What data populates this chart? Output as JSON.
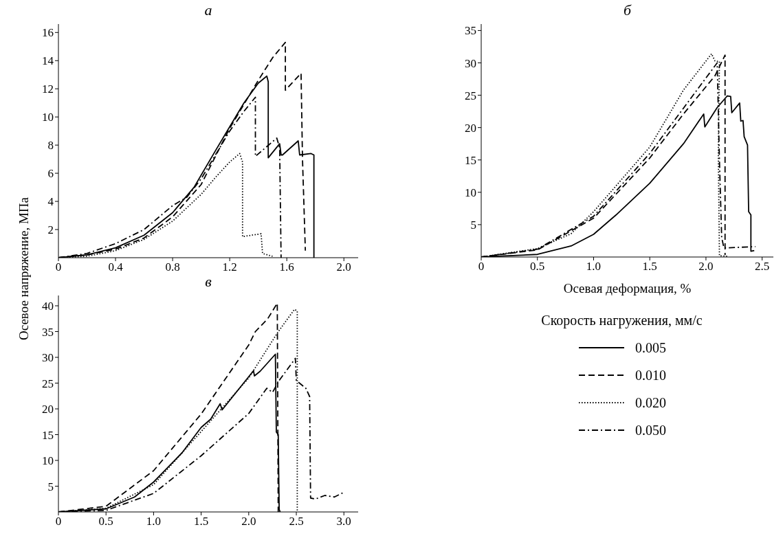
{
  "chart_data": [
    {
      "type": "line",
      "title": "а",
      "ylabel": "Осевое напряжение, МПа",
      "xlim": [
        0,
        2.1
      ],
      "xticks": [
        0,
        0.4,
        0.8,
        1.2,
        1.6,
        {
          "value": 2,
          "label": "2.0"
        }
      ],
      "ylim": [
        0,
        16.6
      ],
      "yticks": [
        2,
        4,
        6,
        8,
        10,
        12,
        14,
        16
      ],
      "legend": false,
      "marker": "none",
      "series": [
        {
          "color": "#000000",
          "line_style": "solid",
          "x": [
            0,
            0.2,
            0.4,
            0.6,
            0.8,
            0.95,
            1.1,
            1.2,
            1.3,
            1.4,
            1.46,
            1.47,
            1.47,
            1.55,
            1.56,
            1.57,
            1.68,
            1.69,
            1.77,
            1.79,
            1.79,
            1.79
          ],
          "values": [
            0,
            0.2,
            0.7,
            1.6,
            3.2,
            5.0,
            7.6,
            9.3,
            11.0,
            12.4,
            12.9,
            12.5,
            7.1,
            8.1,
            7.3,
            7.3,
            8.3,
            7.3,
            7.4,
            7.3,
            6.0,
            0
          ]
        },
        {
          "color": "#000000",
          "line_style": "dashed",
          "x": [
            0,
            0.2,
            0.4,
            0.6,
            0.8,
            1.0,
            1.2,
            1.3,
            1.4,
            1.5,
            1.59,
            1.59,
            1.7,
            1.71,
            1.73
          ],
          "values": [
            0,
            0.2,
            0.6,
            1.4,
            2.9,
            5.2,
            9.2,
            10.9,
            12.6,
            14.2,
            15.3,
            11.9,
            13.1,
            7.0,
            0.5
          ]
        },
        {
          "color": "#000000",
          "line_style": "dotted",
          "x": [
            0,
            0.2,
            0.4,
            0.6,
            0.8,
            1.0,
            1.1,
            1.2,
            1.27,
            1.29,
            1.29,
            1.42,
            1.43,
            1.5
          ],
          "values": [
            0,
            0.1,
            0.5,
            1.3,
            2.6,
            4.5,
            5.7,
            6.8,
            7.4,
            6.8,
            1.5,
            1.7,
            0.3,
            0.1
          ]
        },
        {
          "color": "#000000",
          "line_style": "dashdot",
          "x": [
            0,
            0.2,
            0.4,
            0.6,
            0.8,
            0.9,
            1.0,
            1.2,
            1.3,
            1.38,
            1.38,
            1.53,
            1.55,
            1.56
          ],
          "values": [
            0,
            0.3,
            1.0,
            2.0,
            3.7,
            4.3,
            5.6,
            9.0,
            10.4,
            11.4,
            7.2,
            8.5,
            7.8,
            0
          ]
        }
      ]
    },
    {
      "type": "line",
      "title": "б",
      "xlabel": "Осевая деформация, %",
      "legend_title": "Скорость нагружения, мм/с",
      "legend": "bottom",
      "xlim": [
        0,
        2.6
      ],
      "xticks": [
        0,
        0.5,
        {
          "value": 1,
          "label": "1.0"
        },
        1.5,
        {
          "value": 2,
          "label": "2.0"
        },
        2.5
      ],
      "ylim": [
        0,
        36
      ],
      "yticks": [
        5,
        10,
        15,
        20,
        25,
        30,
        35
      ],
      "marker": "none",
      "series": [
        {
          "name": "0.005",
          "color": "#000000",
          "line_style": "solid",
          "x": [
            0,
            0.5,
            0.8,
            1.0,
            1.2,
            1.5,
            1.8,
            1.98,
            1.99,
            2.1,
            2.19,
            2.22,
            2.23,
            2.3,
            2.31,
            2.33,
            2.34,
            2.37,
            2.38,
            2.4,
            2.4,
            2.43
          ],
          "values": [
            0,
            0.4,
            1.7,
            3.5,
            6.5,
            11.4,
            17.5,
            22.1,
            20.1,
            23.1,
            24.9,
            24.8,
            22.3,
            23.8,
            21.0,
            21.1,
            18.6,
            17.3,
            7.0,
            6.5,
            0.9,
            1.0
          ]
        },
        {
          "name": "0.010",
          "color": "#000000",
          "line_style": "dashed",
          "x": [
            0,
            0.5,
            1.0,
            1.5,
            1.8,
            2.08,
            2.17,
            2.17
          ],
          "values": [
            0,
            1.1,
            6.0,
            15.3,
            22.1,
            28.0,
            31.2,
            0.3
          ]
        },
        {
          "name": "0.020",
          "color": "#000000",
          "line_style": "dotted",
          "x": [
            0,
            0.5,
            0.8,
            1.0,
            1.5,
            1.8,
            2.05,
            2.08,
            2.12,
            2.11,
            2.12,
            2.2
          ],
          "values": [
            0,
            1.3,
            3.6,
            7.0,
            17.0,
            25.8,
            31.4,
            30.3,
            30.2,
            16.0,
            0.2,
            0.1
          ]
        },
        {
          "name": "0.050",
          "color": "#000000",
          "line_style": "dashdot",
          "x": [
            0,
            0.5,
            1.0,
            1.5,
            1.8,
            2.1,
            2.12,
            2.14,
            2.16,
            2.44
          ],
          "values": [
            0,
            1.2,
            6.3,
            16.0,
            23.0,
            30.0,
            15.0,
            3.0,
            1.4,
            1.6
          ]
        }
      ]
    },
    {
      "type": "line",
      "title": "в",
      "xlim": [
        0,
        3.15
      ],
      "xticks": [
        0,
        0.5,
        {
          "value": 1,
          "label": "1.0"
        },
        1.5,
        {
          "value": 2,
          "label": "2.0"
        },
        2.5,
        {
          "value": 3,
          "label": "3.0"
        }
      ],
      "ylim": [
        0,
        42
      ],
      "yticks": [
        5,
        10,
        15,
        20,
        25,
        30,
        35,
        40
      ],
      "legend": false,
      "marker": "none",
      "series": [
        {
          "color": "#000000",
          "line_style": "solid",
          "x": [
            0,
            0.5,
            0.8,
            1.0,
            1.3,
            1.5,
            1.6,
            1.7,
            1.72,
            2.05,
            2.06,
            2.12,
            2.28,
            2.29,
            2.31,
            2.32,
            2.33
          ],
          "values": [
            0,
            0.6,
            2.9,
            5.8,
            11.5,
            16.4,
            18.0,
            21.0,
            19.8,
            27.4,
            26.4,
            27.3,
            30.6,
            15.5,
            15.0,
            0.5,
            0
          ]
        },
        {
          "color": "#000000",
          "line_style": "dashed",
          "x": [
            0,
            0.5,
            1.0,
            1.5,
            2.0,
            2.07,
            2.2,
            2.3,
            2.31
          ],
          "values": [
            0,
            1.1,
            8.0,
            19.0,
            32.4,
            35.0,
            37.5,
            40.5,
            0
          ]
        },
        {
          "color": "#000000",
          "line_style": "dotted",
          "x": [
            0,
            0.5,
            1.0,
            1.5,
            2.0,
            2.3,
            2.48,
            2.51,
            2.51
          ],
          "values": [
            0,
            0.7,
            5.3,
            15.6,
            26.0,
            34.7,
            39.3,
            39.0,
            0
          ]
        },
        {
          "color": "#000000",
          "line_style": "dashdot",
          "x": [
            0,
            0.5,
            1.0,
            1.5,
            2.0,
            2.19,
            2.25,
            2.32,
            2.49,
            2.5,
            2.6,
            2.64,
            2.65,
            2.7,
            2.8,
            2.9,
            3.0
          ],
          "values": [
            0,
            0.3,
            3.6,
            10.9,
            19.1,
            24.0,
            23.2,
            25.5,
            29.8,
            25.5,
            24.0,
            22.4,
            2.7,
            2.5,
            3.2,
            2.9,
            3.8
          ]
        }
      ]
    }
  ]
}
